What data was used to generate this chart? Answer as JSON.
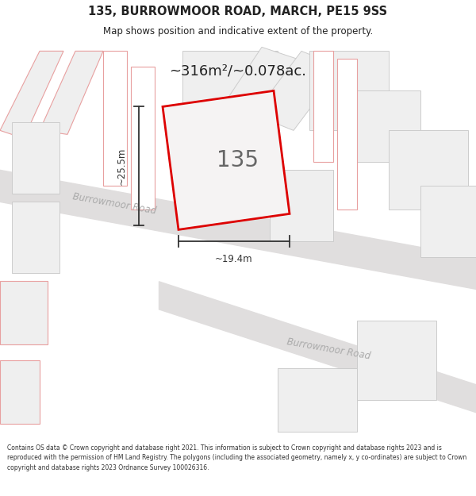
{
  "title": "135, BURROWMOOR ROAD, MARCH, PE15 9SS",
  "subtitle": "Map shows position and indicative extent of the property.",
  "area_label": "~316m²/~0.078ac.",
  "property_number": "135",
  "dim_width": "~19.4m",
  "dim_height": "~25.5m",
  "road_label_1": "Burrowmoor Road",
  "road_label_2": "Burrowmoor Road",
  "footer": "Contains OS data © Crown copyright and database right 2021. This information is subject to Crown copyright and database rights 2023 and is reproduced with the permission of HM Land Registry. The polygons (including the associated geometry, namely x, y co-ordinates) are subject to Crown copyright and database rights 2023 Ordnance Survey 100026316.",
  "bg_white": "#ffffff",
  "map_bg": "#f8f8f8",
  "title_color": "#222222",
  "red_color": "#dd0000",
  "light_red_outline": "#e8a0a0",
  "building_fill": "#efefef",
  "building_gray_outline": "#cccccc",
  "road_fill": "#e0dede",
  "road_text_color": "#aaaaaa",
  "dim_color": "#333333"
}
